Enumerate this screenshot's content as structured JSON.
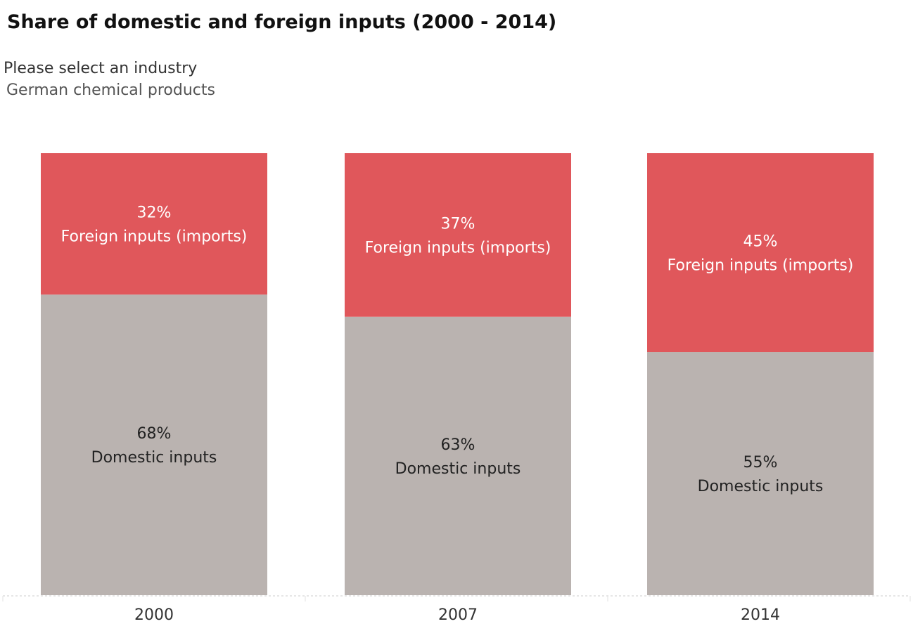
{
  "title": "Share of domestic and foreign inputs (2000 - 2014)",
  "filter": {
    "label": "Please select an industry",
    "selected": "German chemical products"
  },
  "colors": {
    "foreign": "#e0575b",
    "domestic": "#bab3b0",
    "foreign_label": "#ffffff",
    "domestic_label": "#222222",
    "axis_label": "#333333",
    "baseline": "#cccccc"
  },
  "chart_data": {
    "type": "bar",
    "stacked": true,
    "categories": [
      "2000",
      "2007",
      "2014"
    ],
    "series": [
      {
        "name": "Domestic inputs",
        "values": [
          68,
          63,
          55
        ],
        "value_labels": [
          "68%",
          "63%",
          "55%"
        ]
      },
      {
        "name": "Foreign inputs (imports)",
        "values": [
          32,
          37,
          45
        ],
        "value_labels": [
          "32%",
          "37%",
          "45%"
        ]
      }
    ],
    "ylim": [
      0,
      100
    ],
    "grid": false,
    "legend": "none"
  }
}
